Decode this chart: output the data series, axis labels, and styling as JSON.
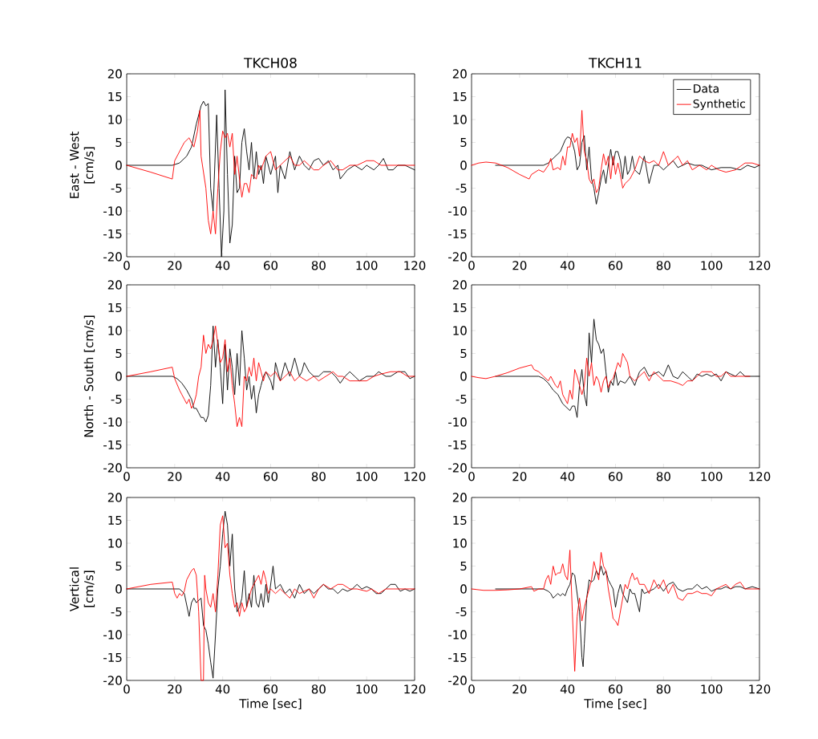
{
  "chart_data": [
    {
      "type": "line",
      "title": "TKCH08",
      "ylabel": "East - West [cm/s]",
      "xlim": [
        0,
        120
      ],
      "ylim": [
        -20,
        20
      ],
      "xticks": [
        0,
        20,
        40,
        60,
        80,
        100,
        120
      ],
      "yticks": [
        -20,
        -15,
        -10,
        -5,
        0,
        5,
        10,
        15,
        20
      ],
      "series": [
        {
          "color": "#000000",
          "x": [
            0,
            10,
            19,
            22,
            25,
            27,
            29,
            31,
            32,
            33,
            34,
            35,
            36,
            36.5,
            37.5,
            38.5,
            39.5,
            40.5,
            41,
            42,
            43,
            44,
            45,
            46,
            47,
            48,
            49,
            50,
            51,
            52,
            53,
            54,
            55,
            56,
            57,
            58,
            60,
            62,
            63,
            64,
            66,
            68,
            70,
            72,
            74,
            76,
            78,
            80,
            82,
            84,
            86,
            88,
            89,
            92,
            95,
            98,
            100,
            103,
            105,
            107,
            109,
            111,
            113,
            116,
            118,
            120
          ],
          "values": [
            0,
            0,
            0,
            0.5,
            2,
            4,
            9,
            13,
            14,
            13,
            13.5,
            -5,
            -10,
            -3,
            11,
            -5,
            -20,
            -10,
            16.5,
            -2,
            -17,
            -13,
            2,
            -6,
            -5,
            5,
            8,
            3,
            -1,
            5,
            -3,
            3,
            -2,
            0,
            -4,
            2,
            -2,
            2,
            -6,
            0,
            -3,
            3,
            -1,
            2,
            0,
            -1,
            1,
            1.5,
            0,
            1,
            -1,
            0,
            -3,
            -1,
            0,
            -1,
            0,
            -1,
            0,
            1.5,
            -1,
            -1,
            0,
            0,
            -0.5,
            -1
          ]
        },
        {
          "color": "#ff0000",
          "x": [
            0,
            10,
            19,
            20,
            22,
            24,
            26,
            28,
            29.5,
            30.5,
            31,
            32,
            33,
            34,
            35,
            36,
            37,
            38,
            39,
            40,
            41,
            42,
            43,
            44,
            45,
            46,
            47,
            48,
            49,
            50,
            51,
            52,
            54,
            55,
            56,
            58,
            60,
            62,
            64,
            66,
            68,
            70,
            72,
            74,
            76,
            78,
            80,
            82,
            85,
            88,
            90,
            93,
            96,
            100,
            103,
            106,
            110,
            114,
            118,
            120
          ],
          "values": [
            0,
            -1.5,
            -3,
            1,
            3,
            5,
            6,
            4,
            7.5,
            12,
            2,
            -1.5,
            -5,
            -12,
            -15,
            -10,
            -15,
            -5,
            3,
            7.5,
            6,
            7,
            4,
            7,
            -2,
            2,
            -3,
            -7,
            -4,
            -4,
            -6,
            -2,
            -3,
            0,
            -1,
            2,
            3,
            -1,
            0,
            1,
            2,
            0,
            0,
            1,
            0,
            -1,
            -1,
            0,
            1,
            -1,
            -1,
            0,
            0,
            1,
            1,
            0,
            0,
            0,
            0,
            0
          ]
        }
      ]
    },
    {
      "type": "line",
      "title": "TKCH11",
      "xlim": [
        0,
        120
      ],
      "ylim": [
        -20,
        20
      ],
      "xticks": [
        0,
        20,
        40,
        60,
        80,
        100,
        120
      ],
      "yticks": [
        -20,
        -15,
        -10,
        -5,
        0,
        5,
        10,
        15,
        20
      ],
      "legend": "top right",
      "series": [
        {
          "name": "Data",
          "color": "#000000",
          "x": [
            10,
            20,
            30,
            32,
            35,
            37,
            39,
            40,
            41,
            42,
            43,
            44,
            45,
            46,
            47,
            48,
            49,
            50,
            51,
            52,
            53,
            54,
            55,
            56,
            57,
            58,
            59,
            60,
            61,
            62,
            63,
            64,
            65,
            66,
            67,
            68,
            70,
            72,
            74,
            76,
            78,
            80,
            82,
            84,
            86,
            88,
            90,
            93,
            96,
            100,
            104,
            108,
            112,
            115,
            118,
            120
          ],
          "values": [
            0,
            0,
            0,
            0.5,
            2,
            3,
            5.5,
            6.2,
            6,
            5,
            3,
            -1,
            0,
            5,
            6.5,
            -1,
            4,
            -3,
            -5,
            -8.5,
            -6,
            -3,
            -1,
            -4,
            0,
            3.5,
            0,
            3,
            3,
            1,
            -3,
            2,
            -2,
            -1,
            2,
            -1,
            -2,
            2,
            -4,
            0,
            0,
            -1,
            0,
            1,
            -0.5,
            0,
            0.5,
            0,
            0,
            -1,
            -0.5,
            -0.5,
            -1,
            0,
            -0.5,
            0
          ]
        },
        {
          "name": "Synthetic",
          "color": "#ff0000",
          "x": [
            0,
            3,
            6,
            10,
            15,
            20,
            24,
            25,
            28,
            30,
            32,
            33,
            34,
            36,
            37,
            38,
            39,
            40,
            41,
            42,
            43,
            44,
            45,
            46,
            47,
            48,
            49,
            50,
            51,
            52,
            53,
            54,
            55,
            56,
            57,
            58,
            59,
            60,
            61,
            62,
            63,
            64,
            66,
            68,
            70,
            72,
            74,
            76,
            78,
            80,
            82,
            84,
            86,
            88,
            90,
            92,
            95,
            98,
            100,
            103,
            106,
            110,
            114,
            117,
            120
          ],
          "values": [
            0,
            0.5,
            0.7,
            0.5,
            -0.5,
            -2,
            -3,
            -2,
            -1,
            -1.5,
            0,
            1.5,
            -1,
            -0.5,
            -1,
            2,
            0,
            4,
            4,
            7,
            5,
            6,
            2,
            12,
            3,
            1,
            -3,
            -4,
            -3,
            -6,
            -5,
            -1,
            2.5,
            0,
            2,
            -3,
            2,
            -2,
            0.5,
            -2,
            -5,
            -4,
            -3,
            -1,
            2,
            1,
            0.5,
            1,
            0,
            3,
            0,
            1,
            2,
            0,
            1,
            -1,
            0,
            -1,
            0,
            -1,
            -1.5,
            -1,
            0.5,
            0.5,
            0
          ]
        }
      ]
    },
    {
      "type": "line",
      "ylabel": "North - South [cm/s]",
      "xlim": [
        0,
        120
      ],
      "ylim": [
        -20,
        20
      ],
      "xticks": [
        0,
        20,
        40,
        60,
        80,
        100,
        120
      ],
      "yticks": [
        -20,
        -15,
        -10,
        -5,
        0,
        5,
        10,
        15,
        20
      ],
      "series": [
        {
          "color": "#000000",
          "x": [
            0,
            19,
            21,
            23,
            25,
            26,
            27,
            28,
            29,
            30,
            31,
            32,
            33,
            34,
            35,
            36,
            37,
            38,
            39,
            40,
            41,
            42,
            43,
            44,
            45,
            46,
            47,
            48,
            49,
            50,
            51,
            52,
            53,
            54,
            55,
            56,
            57,
            58,
            60,
            61,
            62,
            64,
            66,
            68,
            70,
            72,
            73,
            74,
            76,
            78,
            80,
            82,
            85,
            87,
            89,
            91,
            93,
            95,
            97,
            100,
            103,
            105,
            108,
            110,
            113,
            116,
            118,
            120
          ],
          "values": [
            0,
            0,
            -0.5,
            -1.5,
            -3,
            -4,
            -5,
            -7,
            -7,
            -8,
            -9,
            -9,
            -10,
            -8.5,
            -2,
            11,
            2,
            8,
            2,
            -6,
            7,
            -3,
            6,
            2,
            -4,
            5,
            -2,
            10,
            4,
            -3,
            0,
            -5,
            -2,
            -8,
            -4,
            -2,
            0,
            1,
            -1,
            -3,
            3,
            -1,
            3,
            0,
            4,
            0,
            1,
            3,
            1,
            0,
            0,
            1,
            1,
            0,
            -1.5,
            0,
            1,
            0,
            -1,
            0,
            0,
            1,
            0,
            0,
            1,
            1,
            -0.5,
            0
          ]
        },
        {
          "color": "#ff0000",
          "x": [
            0,
            10,
            19,
            20,
            22,
            23,
            24,
            25,
            26,
            27,
            28,
            29,
            30,
            31,
            32,
            33,
            34,
            35,
            36,
            37,
            38,
            39,
            40,
            41,
            42,
            43,
            44,
            45,
            46,
            47,
            48,
            49,
            50,
            51,
            52,
            53,
            54,
            55,
            56,
            57,
            58,
            60,
            62,
            64,
            66,
            68,
            70,
            72,
            75,
            78,
            80,
            83,
            86,
            88,
            90,
            93,
            96,
            100,
            103,
            106,
            110,
            114,
            117,
            120
          ],
          "values": [
            0,
            1,
            2,
            -0.5,
            -3,
            -4,
            -5,
            -6,
            -5,
            -7,
            -6,
            -4,
            0,
            2,
            9,
            5,
            7,
            6,
            8,
            11,
            7,
            3,
            4,
            8,
            1,
            4,
            -2,
            -6,
            -11,
            -9,
            -11,
            0,
            -1,
            2,
            0,
            4,
            -1,
            3,
            1,
            -1,
            1,
            0,
            1,
            -1,
            0,
            1,
            -1,
            0,
            -1,
            0,
            -1,
            0,
            1,
            0,
            0,
            -1,
            -1,
            -1,
            0,
            0.5,
            1,
            1,
            0,
            0
          ]
        }
      ]
    },
    {
      "type": "line",
      "xlim": [
        0,
        120
      ],
      "ylim": [
        -20,
        20
      ],
      "xticks": [
        0,
        20,
        40,
        60,
        80,
        100,
        120
      ],
      "yticks": [
        -20,
        -15,
        -10,
        -5,
        0,
        5,
        10,
        15,
        20
      ],
      "series": [
        {
          "color": "#000000",
          "x": [
            10,
            20,
            28,
            30,
            32,
            34,
            36,
            38,
            40,
            41,
            42,
            43,
            44,
            45,
            46,
            47,
            48,
            49,
            50,
            51,
            52,
            53,
            54,
            55,
            56,
            57,
            58,
            59,
            60,
            61,
            62,
            64,
            66,
            68,
            70,
            72,
            74,
            76,
            78,
            80,
            82,
            84,
            86,
            88,
            90,
            92,
            94,
            96,
            98,
            100,
            102,
            104,
            106,
            108,
            110,
            112,
            114,
            117,
            120
          ],
          "values": [
            0,
            0,
            0,
            -0.5,
            -1.5,
            -3,
            -4,
            -6,
            -7,
            -7.5,
            -6.5,
            -6.5,
            -9,
            -2,
            1.5,
            -4,
            -6.5,
            9.5,
            3,
            12.5,
            8,
            7,
            5,
            6,
            1,
            -3.5,
            -1,
            -2,
            1,
            -2,
            -1,
            -1.5,
            0,
            -2,
            1,
            2,
            0,
            0.5,
            1,
            0,
            2.5,
            0,
            -0.5,
            1,
            0,
            -1,
            0.5,
            0,
            0.5,
            0,
            0.5,
            -1,
            1,
            0.5,
            0,
            1,
            0,
            0,
            0
          ]
        },
        {
          "color": "#ff0000",
          "x": [
            0,
            3,
            6,
            10,
            15,
            20,
            25,
            26,
            28,
            30,
            32,
            33,
            35,
            36,
            37,
            38,
            39,
            40,
            41,
            42,
            43,
            44,
            45,
            46,
            47,
            48,
            49,
            50,
            51,
            52,
            53,
            54,
            55,
            56,
            57,
            58,
            59,
            61,
            62,
            63,
            64,
            65,
            66,
            68,
            70,
            72,
            74,
            76,
            78,
            80,
            83,
            86,
            88,
            90,
            92,
            94,
            96,
            98,
            100,
            102,
            104,
            106,
            108,
            110,
            113,
            116
          ],
          "values": [
            0,
            -0.3,
            -0.5,
            0,
            0.8,
            1.8,
            2.5,
            1.5,
            1,
            0,
            -1,
            0,
            -2,
            -2.5,
            -1,
            -4,
            -5,
            -6,
            -3,
            -5,
            1.5,
            0,
            -2,
            -4,
            -2,
            4,
            0,
            3,
            -2,
            0,
            -1,
            -3.5,
            -1,
            0,
            -2.5,
            -1,
            -0.5,
            3,
            2,
            5,
            4,
            3,
            0,
            -1,
            0,
            1,
            -1,
            1,
            0,
            -1,
            -1,
            -1.5,
            -2,
            -1,
            -1,
            0,
            1,
            1,
            1,
            0,
            0,
            1,
            0,
            0,
            0,
            0
          ]
        }
      ]
    },
    {
      "type": "line",
      "ylabel": "Vertical [cm/s]",
      "xlabel": "Time [sec]",
      "xlim": [
        0,
        120
      ],
      "ylim": [
        -20,
        20
      ],
      "xticks": [
        0,
        20,
        40,
        60,
        80,
        100,
        120
      ],
      "yticks": [
        -20,
        -15,
        -10,
        -5,
        0,
        5,
        10,
        15,
        20
      ],
      "series": [
        {
          "color": "#000000",
          "x": [
            0,
            19,
            22,
            24,
            26,
            27,
            28,
            29,
            31,
            32,
            33,
            34,
            35,
            36,
            37,
            38,
            39,
            40,
            41,
            42,
            43,
            44,
            45,
            46,
            47,
            48,
            49,
            50,
            51,
            52,
            53,
            54,
            55,
            56,
            57,
            58,
            59,
            60,
            61,
            62,
            64,
            66,
            68,
            70,
            72,
            74,
            76,
            78,
            80,
            82,
            84,
            86,
            88,
            90,
            92,
            94,
            96,
            98,
            100,
            102,
            104,
            106,
            108,
            110,
            112,
            114,
            116,
            118,
            120
          ],
          "values": [
            0,
            0,
            0,
            -1,
            -6,
            -3,
            -2,
            -3,
            -2,
            -8,
            -9,
            -12,
            -16,
            -19.5,
            -10,
            0,
            5,
            12,
            17,
            14,
            5,
            12,
            0,
            -5,
            -4,
            -2,
            4,
            -4,
            -1,
            -4,
            3,
            -3,
            -4,
            -1,
            -4,
            1,
            -3,
            1,
            5,
            0,
            1,
            -1,
            0,
            -2,
            1,
            -1,
            0,
            -1,
            0,
            1,
            0,
            0,
            -1,
            0,
            -0.5,
            0,
            1,
            0,
            0.5,
            0,
            -1,
            -1,
            0,
            1,
            1,
            -0.5,
            0,
            -0.5,
            0
          ]
        },
        {
          "color": "#ff0000",
          "x": [
            0,
            10,
            19,
            20,
            21,
            22,
            23,
            24,
            25,
            26,
            27,
            28,
            29,
            30,
            31,
            32,
            32.5,
            33,
            34,
            35,
            36,
            37,
            38,
            39,
            40,
            41,
            42,
            43,
            44,
            45,
            46,
            47,
            48,
            49,
            50,
            51,
            52,
            53,
            54,
            55,
            56,
            57,
            58,
            59,
            60,
            62,
            64,
            66,
            68,
            70,
            72,
            74,
            76,
            78,
            80,
            82,
            85,
            88,
            90,
            93,
            96,
            100,
            102,
            105,
            108,
            112,
            116,
            120
          ],
          "values": [
            0,
            1,
            1.5,
            -1,
            -2,
            -1,
            -1.5,
            -0.5,
            2,
            3,
            4,
            4.5,
            3,
            -5,
            -20,
            -20,
            3,
            0,
            -3,
            -4,
            -1,
            -5,
            3,
            14,
            16,
            9,
            10,
            3,
            -1,
            -4,
            -3,
            -6,
            -3,
            -5,
            -4,
            -2,
            0,
            1,
            2,
            3,
            1,
            4,
            2,
            -1,
            0,
            -1,
            0,
            -1,
            -2,
            0,
            -1,
            -0.5,
            0,
            -2,
            0,
            1,
            0,
            1,
            1,
            0,
            0,
            -0.5,
            0,
            -1,
            0,
            0,
            0,
            0
          ]
        }
      ]
    },
    {
      "type": "line",
      "xlabel": "Time [sec]",
      "xlim": [
        0,
        120
      ],
      "ylim": [
        -20,
        20
      ],
      "xticks": [
        0,
        20,
        40,
        60,
        80,
        100,
        120
      ],
      "yticks": [
        -20,
        -15,
        -10,
        -5,
        0,
        5,
        10,
        15,
        20
      ],
      "series": [
        {
          "color": "#000000",
          "x": [
            10,
            20,
            28,
            30,
            32,
            33,
            34,
            35,
            36,
            37,
            38,
            39,
            40,
            41,
            42,
            43,
            44,
            45,
            46,
            46.5,
            47,
            48,
            49,
            50,
            51,
            52,
            53,
            54,
            55,
            56,
            57,
            58,
            59,
            60,
            61,
            62,
            63,
            64,
            65,
            66,
            67,
            68,
            69,
            70,
            71,
            72,
            74,
            76,
            78,
            80,
            82,
            84,
            86,
            88,
            90,
            92,
            94,
            96,
            98,
            100,
            102,
            104,
            106,
            108,
            110,
            112,
            114,
            117,
            120
          ],
          "values": [
            0,
            0,
            0,
            0,
            -0.5,
            -1,
            -2,
            -1.5,
            -1,
            -1.5,
            -1,
            -1.5,
            0,
            1,
            3.5,
            3,
            -1,
            -5,
            -15,
            -17,
            -12,
            -2,
            2,
            1.5,
            2,
            4,
            3,
            5,
            3,
            4,
            2,
            1,
            0,
            -4,
            -1,
            1,
            -1,
            -2,
            -3,
            0,
            -1,
            -1,
            -3,
            -5,
            0,
            -1,
            -0.5,
            0,
            1,
            -0.5,
            1,
            1.5,
            0,
            -0.5,
            0,
            0,
            1,
            0,
            0.5,
            -0.5,
            0,
            0,
            0.5,
            0,
            0.5,
            0.5,
            0,
            0.5,
            0
          ]
        },
        {
          "color": "#ff0000",
          "x": [
            0,
            5,
            10,
            15,
            20,
            25,
            26,
            28,
            30,
            31,
            32,
            33,
            34,
            35,
            36,
            37,
            38,
            39,
            40,
            41,
            42,
            43,
            44,
            45,
            46,
            47,
            48,
            49,
            50,
            51,
            52,
            53,
            54,
            55,
            56,
            57,
            58,
            59,
            60,
            61,
            62,
            63,
            64,
            65,
            66,
            67,
            68,
            69,
            70,
            72,
            74,
            76,
            78,
            80,
            82,
            84,
            86,
            88,
            90,
            92,
            94,
            96,
            98,
            100,
            102,
            104,
            106,
            108,
            110,
            112,
            114,
            117,
            120
          ],
          "values": [
            0,
            -0.3,
            -0.3,
            -0.2,
            0,
            0.5,
            -0.5,
            0,
            0,
            2,
            3,
            1,
            5,
            3,
            3.5,
            3.5,
            5.5,
            3,
            2,
            8.5,
            -5,
            -18,
            -6,
            -2,
            -7,
            -4,
            -2,
            0,
            2,
            6,
            4,
            2,
            8,
            5,
            4,
            0,
            -3,
            -6.5,
            -7,
            -8,
            -5,
            -2,
            1,
            0,
            2,
            3.5,
            2,
            2.5,
            1,
            1,
            -1,
            2,
            0,
            2,
            -1,
            1,
            -2,
            -2.5,
            -1,
            -1,
            -0.5,
            -1,
            -1,
            -1.5,
            0,
            0.5,
            1,
            0,
            1,
            1.5,
            0,
            0,
            0
          ]
        }
      ]
    }
  ]
}
